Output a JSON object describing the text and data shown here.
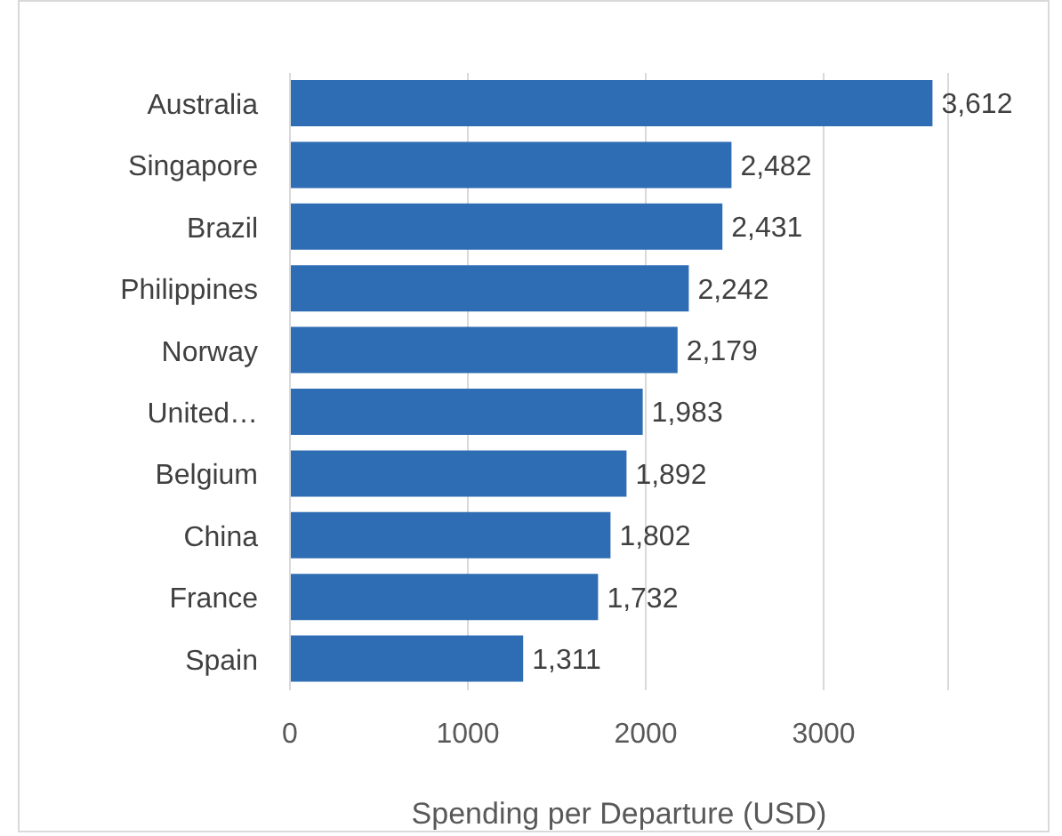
{
  "chart_data": {
    "type": "bar",
    "orientation": "horizontal",
    "xlabel": "Spending per Departure (USD)",
    "categories": [
      "Australia",
      "Singapore",
      "Brazil",
      "Philippines",
      "Norway",
      "United…",
      "Belgium",
      "China",
      "France",
      "Spain"
    ],
    "values": [
      3612,
      2482,
      2431,
      2242,
      2179,
      1983,
      1892,
      1802,
      1732,
      1311
    ],
    "value_labels": [
      "3,612",
      "2,482",
      "2,431",
      "2,242",
      "2,179",
      "1,983",
      "1,892",
      "1,802",
      "1,732",
      "1,311"
    ],
    "color": "#2e6db4",
    "xlim": [
      0,
      3700
    ],
    "xticks": [
      0,
      1000,
      2000,
      3000
    ],
    "grid": "x",
    "legend": false
  }
}
